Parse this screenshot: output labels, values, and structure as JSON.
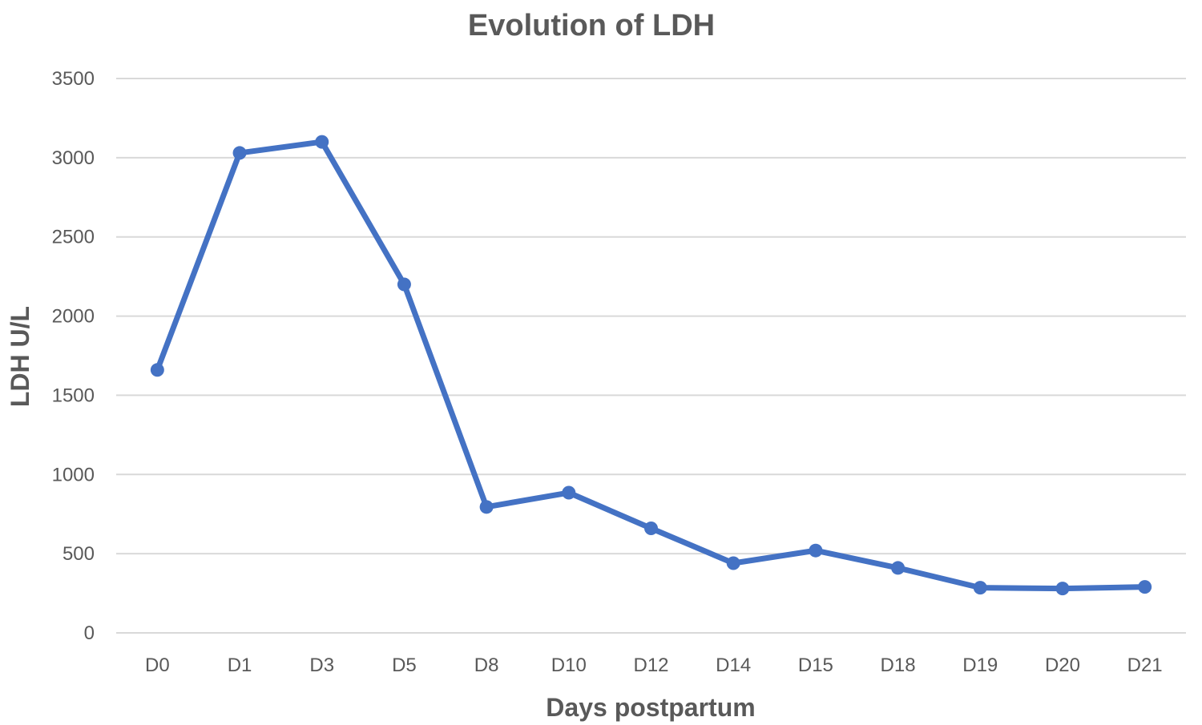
{
  "chart_data": {
    "type": "line",
    "title": "Evolution of LDH",
    "xlabel": "Days postpartum",
    "ylabel": "LDH  U/L",
    "categories": [
      "D0",
      "D1",
      "D3",
      "D5",
      "D8",
      "D10",
      "D12",
      "D14",
      "D15",
      "D18",
      "D19",
      "D20",
      "D21"
    ],
    "series": [
      {
        "values": [
          1660,
          3030,
          3100,
          2200,
          795,
          885,
          660,
          440,
          520,
          410,
          285,
          280,
          290
        ],
        "color": "#4472c4"
      }
    ],
    "ylim": [
      0,
      3500
    ],
    "yticks": [
      "0",
      "500",
      "1000",
      "1500",
      "2000",
      "2500",
      "3000",
      "3500"
    ],
    "grid": true,
    "legend": "none",
    "colors": {
      "text": "#595959",
      "grid": "#d9d9d9"
    }
  }
}
